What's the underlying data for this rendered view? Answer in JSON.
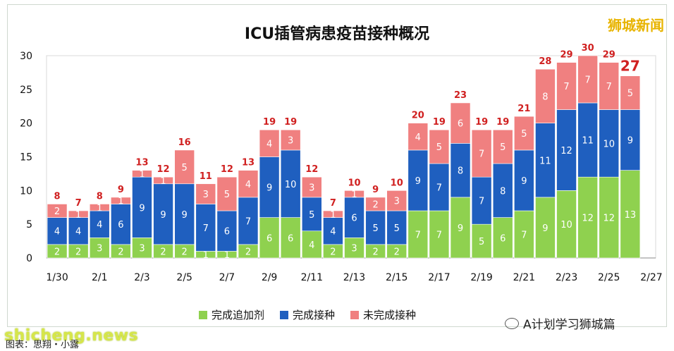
{
  "brand": "狮城新闻",
  "watermark": "shicheng.news",
  "wechat_label": "A计划学习狮城篇",
  "caption": "图表：思翔・小露",
  "colors": {
    "completed_booster": "#8fd14f",
    "completed_vaccination": "#1f5fbf",
    "not_completed": "#f08080",
    "total_label": "#d02020"
  },
  "chart_data": {
    "type": "bar",
    "stacked": true,
    "title": "ICU插管病患疫苗接种概况",
    "xlabel": "",
    "ylabel": "",
    "ylim": [
      0,
      30
    ],
    "yticks": [
      0,
      5,
      10,
      15,
      20,
      25,
      30
    ],
    "x_tick_labels": [
      "1/30",
      "2/1",
      "2/3",
      "2/5",
      "2/7",
      "2/9",
      "2/11",
      "2/13",
      "2/15",
      "2/17",
      "2/19",
      "2/21",
      "2/23",
      "2/25",
      "2/27"
    ],
    "categories": [
      "1/30",
      "1/31",
      "2/1",
      "2/2",
      "2/3",
      "2/4",
      "2/5",
      "2/6",
      "2/7",
      "2/8",
      "2/9",
      "2/10",
      "2/11",
      "2/12",
      "2/13",
      "2/14",
      "2/15",
      "2/16",
      "2/17",
      "2/18",
      "2/19",
      "2/20",
      "2/21",
      "2/22",
      "2/23",
      "2/24",
      "2/25",
      "2/26"
    ],
    "series": [
      {
        "name": "完成追加剂",
        "values": [
          2,
          2,
          3,
          2,
          3,
          2,
          2,
          1,
          1,
          2,
          6,
          6,
          4,
          2,
          3,
          2,
          2,
          7,
          7,
          9,
          5,
          6,
          7,
          9,
          10,
          12,
          12,
          13
        ]
      },
      {
        "name": "完成接种",
        "values": [
          4,
          4,
          4,
          6,
          9,
          9,
          9,
          7,
          6,
          7,
          9,
          10,
          5,
          4,
          6,
          5,
          5,
          9,
          7,
          8,
          7,
          8,
          9,
          11,
          12,
          11,
          10,
          9
        ]
      },
      {
        "name": "未完成接种",
        "values": [
          2,
          1,
          1,
          1,
          1,
          1,
          5,
          3,
          5,
          4,
          4,
          3,
          3,
          1,
          1,
          2,
          3,
          4,
          5,
          6,
          7,
          5,
          5,
          8,
          7,
          7,
          7,
          5
        ]
      }
    ],
    "totals": [
      8,
      7,
      8,
      9,
      13,
      12,
      16,
      11,
      12,
      13,
      19,
      19,
      12,
      7,
      10,
      9,
      10,
      20,
      19,
      23,
      19,
      19,
      21,
      28,
      29,
      30,
      29,
      27
    ],
    "grid": false,
    "legend_position": "bottom"
  }
}
